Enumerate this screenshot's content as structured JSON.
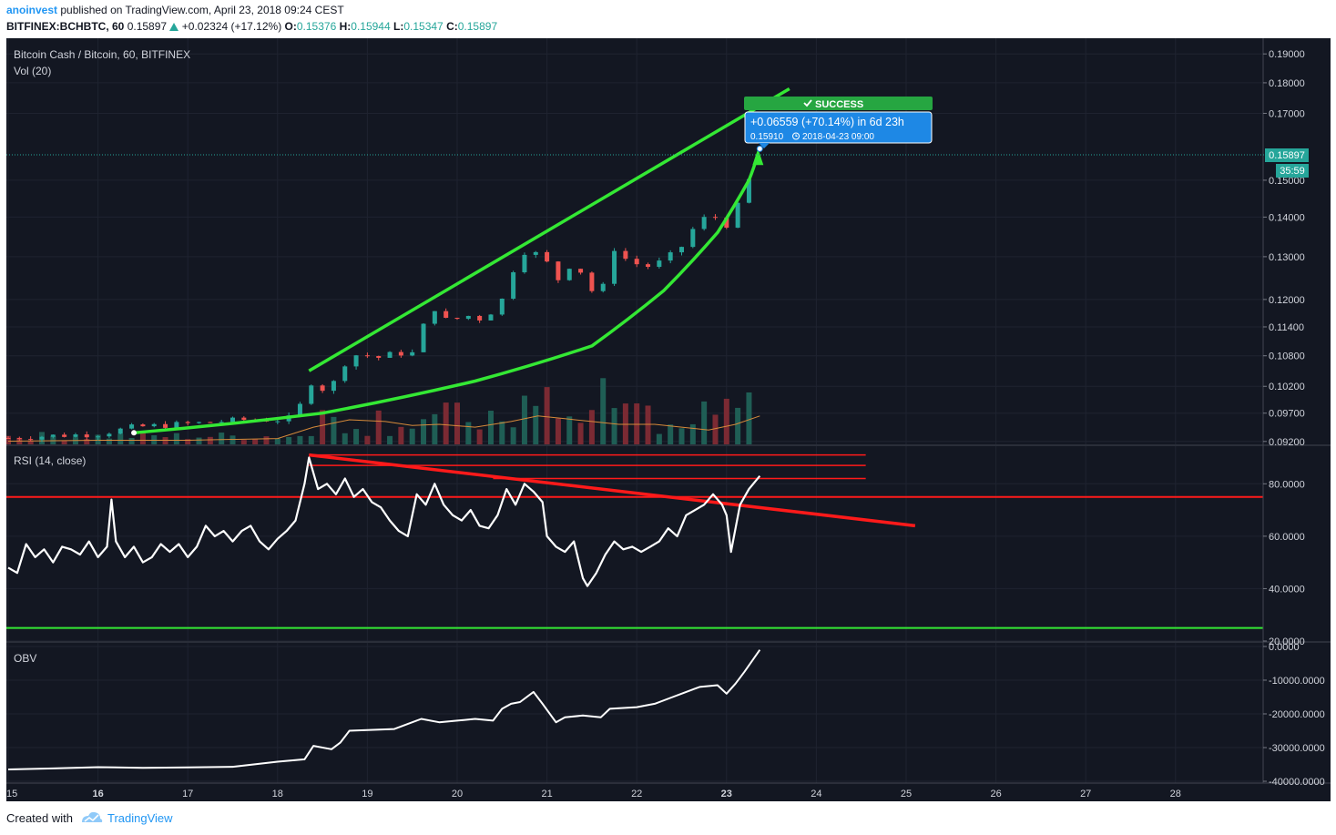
{
  "header": {
    "author": "anoinvest",
    "published_text": "published on TradingView.com, April 23, 2018 09:24 CEST",
    "symbol": "BITFINEX:BCHBTC, 60",
    "last": "0.15897",
    "change": "+0.02324 (+17.12%)",
    "o_label": "O:",
    "o_value": "0.15376",
    "h_label": "H:",
    "h_value": "0.15944",
    "l_label": "L:",
    "l_value": "0.15347",
    "c_label": "C:",
    "c_value": "0.15897"
  },
  "main_pane": {
    "title": "Bitcoin Cash / Bitcoin, 60, BITFINEX",
    "vol_label": "Vol (20)",
    "price_badge": "0.15897",
    "countdown_badge": "35:59",
    "success_label": "SUCCESS",
    "measure_line1": "+0.06559 (+70.14%) in 6d 23h",
    "measure_price": "0.15910",
    "measure_datetime": "2018-04-23  09:00"
  },
  "rsi_pane": {
    "title": "RSI (14, close)"
  },
  "obv_pane": {
    "title": "OBV"
  },
  "footer": {
    "created_with": "Created with",
    "brand": "TradingView"
  },
  "colors": {
    "background": "#131722",
    "up": "#26a69a",
    "down": "#ef5350",
    "green_drawing": "#34e834",
    "red_drawing": "#ff1a1a",
    "accent_blue": "#2196f3",
    "success_green": "#26a641"
  },
  "chart_data": [
    {
      "type": "candlestick",
      "title": "Bitcoin Cash / Bitcoin, 60, BITFINEX",
      "y_ticks": [
        "0.19000",
        "0.18000",
        "0.17000",
        "0.15000",
        "0.14000",
        "0.13000",
        "0.12000",
        "0.11400",
        "0.10800",
        "0.10200",
        "0.09700",
        "0.09200"
      ],
      "x_ticks": [
        "15",
        "16",
        "17",
        "18",
        "19",
        "20",
        "21",
        "22",
        "23",
        "24",
        "25",
        "26",
        "27",
        "28"
      ],
      "ylim": [
        0.0915,
        0.193
      ],
      "close_path": [
        [
          15.0,
          0.0926
        ],
        [
          15.5,
          0.093
        ],
        [
          16.0,
          0.0933
        ],
        [
          16.4,
          0.0945
        ],
        [
          16.8,
          0.0949
        ],
        [
          17.2,
          0.0953
        ],
        [
          17.6,
          0.0958
        ],
        [
          18.0,
          0.0958
        ],
        [
          18.2,
          0.0962
        ],
        [
          18.35,
          0.103
        ],
        [
          18.5,
          0.1015
        ],
        [
          18.6,
          0.102
        ],
        [
          18.75,
          0.1065
        ],
        [
          18.9,
          0.1085
        ],
        [
          19.1,
          0.1075
        ],
        [
          19.3,
          0.1085
        ],
        [
          19.5,
          0.1085
        ],
        [
          19.55,
          0.112
        ],
        [
          19.75,
          0.118
        ],
        [
          19.9,
          0.115
        ],
        [
          20.1,
          0.1165
        ],
        [
          20.3,
          0.1155
        ],
        [
          20.5,
          0.12
        ],
        [
          20.6,
          0.126
        ],
        [
          20.8,
          0.133
        ],
        [
          20.9,
          0.13
        ],
        [
          21.0,
          0.1285
        ],
        [
          21.1,
          0.124
        ],
        [
          21.3,
          0.129
        ],
        [
          21.45,
          0.124
        ],
        [
          21.55,
          0.12
        ],
        [
          21.7,
          0.126
        ],
        [
          21.75,
          0.132
        ],
        [
          21.9,
          0.129
        ],
        [
          22.1,
          0.1275
        ],
        [
          22.3,
          0.129
        ],
        [
          22.5,
          0.1325
        ],
        [
          22.7,
          0.1395
        ],
        [
          22.9,
          0.14
        ],
        [
          23.05,
          0.137
        ],
        [
          23.15,
          0.145
        ],
        [
          23.25,
          0.15
        ],
        [
          23.37,
          0.159
        ]
      ],
      "volume_path": [
        [
          15.0,
          0.09205
        ],
        [
          16.0,
          0.0922
        ],
        [
          17.0,
          0.0922
        ],
        [
          18.0,
          0.0925
        ],
        [
          18.4,
          0.0945
        ],
        [
          18.8,
          0.0958
        ],
        [
          19.2,
          0.0955
        ],
        [
          19.5,
          0.0948
        ],
        [
          19.8,
          0.095
        ],
        [
          20.2,
          0.0945
        ],
        [
          20.6,
          0.0955
        ],
        [
          20.9,
          0.0965
        ],
        [
          21.2,
          0.096
        ],
        [
          21.5,
          0.0955
        ],
        [
          21.8,
          0.095
        ],
        [
          22.2,
          0.095
        ],
        [
          22.5,
          0.0945
        ],
        [
          22.8,
          0.094
        ],
        [
          23.1,
          0.095
        ],
        [
          23.37,
          0.0965
        ]
      ],
      "annotations": {
        "success_label": "SUCCESS",
        "measure": "+0.06559 (+70.14%) in 6d 23h",
        "measure_price": "0.15910",
        "measure_datetime": "2018-04-23  09:00",
        "last_price": "0.15897",
        "countdown": "35:59",
        "upper_trend_line": [
          [
            18.35,
            0.105
          ],
          [
            23.7,
            0.178
          ]
        ],
        "lower_curve_points": [
          [
            16.4,
            0.0935
          ],
          [
            18.5,
            0.097
          ],
          [
            20.2,
            0.103
          ],
          [
            21.5,
            0.11
          ],
          [
            22.3,
            0.122
          ],
          [
            22.9,
            0.136
          ],
          [
            23.25,
            0.15
          ],
          [
            23.35,
            0.1575
          ]
        ]
      }
    },
    {
      "type": "line",
      "title": "RSI (14, close)",
      "y_ticks": [
        "80.0000",
        "60.0000",
        "40.0000",
        "20.0000"
      ],
      "ylim": [
        20,
        94
      ],
      "series": [
        {
          "x": [
            15.0,
            15.1,
            15.2,
            15.3,
            15.4,
            15.5,
            15.6,
            15.7,
            15.8,
            15.9,
            16.0,
            16.1,
            16.15,
            16.2,
            16.3,
            16.4,
            16.5,
            16.6,
            16.7,
            16.8,
            16.9,
            17.0,
            17.1,
            17.2,
            17.3,
            17.4,
            17.5,
            17.6,
            17.7,
            17.8,
            17.9,
            18.0,
            18.1,
            18.2,
            18.3,
            18.35,
            18.45,
            18.55,
            18.65,
            18.75,
            18.85,
            18.95,
            19.05,
            19.15,
            19.25,
            19.35,
            19.45,
            19.55,
            19.65,
            19.75,
            19.85,
            19.95,
            20.05,
            20.15,
            20.25,
            20.35,
            20.45,
            20.55,
            20.65,
            20.75,
            20.85,
            20.95,
            21.0,
            21.1,
            21.2,
            21.3,
            21.4,
            21.45,
            21.55,
            21.65,
            21.75,
            21.85,
            21.95,
            22.05,
            22.15,
            22.25,
            22.35,
            22.45,
            22.55,
            22.65,
            22.75,
            22.85,
            22.95,
            23.0,
            23.05,
            23.15,
            23.25,
            23.37
          ],
          "y": [
            48,
            46,
            57,
            52,
            55,
            50,
            56,
            55,
            53,
            58,
            52,
            56,
            74,
            58,
            52,
            56,
            50,
            52,
            57,
            54,
            57,
            52,
            56,
            64,
            60,
            62,
            58,
            62,
            64,
            58,
            55,
            59,
            62,
            66,
            80,
            90,
            78,
            80,
            76,
            82,
            75,
            78,
            73,
            71,
            66,
            62,
            60,
            76,
            72,
            80,
            72,
            68,
            66,
            70,
            64,
            63,
            68,
            78,
            72,
            80,
            77,
            73,
            60,
            56,
            54,
            58,
            44,
            41,
            46,
            53,
            58,
            55,
            56,
            54,
            56,
            58,
            63,
            60,
            68,
            70,
            72,
            76,
            72,
            68,
            54,
            72,
            78,
            83
          ]
        }
      ],
      "annotations": {
        "overbought_line": 75,
        "oversold_line": 25,
        "horizontal_lines": [
          [
            18.35,
            91
          ],
          [
            24.55,
            91
          ],
          [
            18.35,
            87
          ],
          [
            24.55,
            87
          ],
          [
            20.4,
            82
          ],
          [
            24.55,
            82
          ]
        ],
        "falling_trend_line": [
          [
            18.35,
            91
          ],
          [
            25.1,
            64
          ]
        ]
      }
    },
    {
      "type": "line",
      "title": "OBV",
      "y_ticks": [
        "0.0000",
        "-10000.0000",
        "-20000.0000",
        "-30000.0000",
        "-40000.0000"
      ],
      "ylim": [
        -40000,
        800
      ],
      "series": [
        {
          "x": [
            15.0,
            15.5,
            16.0,
            16.5,
            17.0,
            17.5,
            18.0,
            18.3,
            18.4,
            18.6,
            18.7,
            18.8,
            19.0,
            19.3,
            19.5,
            19.6,
            19.8,
            20.0,
            20.2,
            20.4,
            20.5,
            20.6,
            20.7,
            20.85,
            20.95,
            21.1,
            21.2,
            21.4,
            21.6,
            21.7,
            22.0,
            22.2,
            22.4,
            22.6,
            22.7,
            22.9,
            23.0,
            23.1,
            23.2,
            23.37
          ],
          "y": [
            -36500,
            -36200,
            -35800,
            -36000,
            -35900,
            -35700,
            -34200,
            -33500,
            -29500,
            -30500,
            -28500,
            -25000,
            -24800,
            -24500,
            -22500,
            -21500,
            -22500,
            -22000,
            -21500,
            -22000,
            -18500,
            -17000,
            -16500,
            -13500,
            -17000,
            -22500,
            -21000,
            -20500,
            -21000,
            -18500,
            -18000,
            -17000,
            -15000,
            -13000,
            -12000,
            -11500,
            -14000,
            -11000,
            -7500,
            -1000
          ]
        }
      ]
    }
  ]
}
